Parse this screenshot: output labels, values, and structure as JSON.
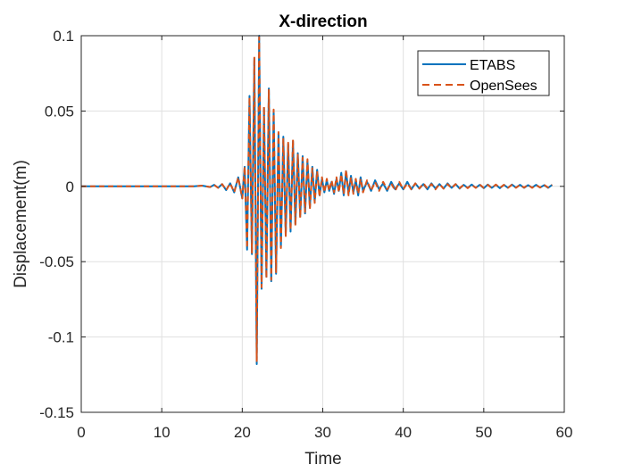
{
  "chart_data": {
    "type": "line",
    "title": "X-direction",
    "xlabel": "Time",
    "ylabel": "Displacement(m)",
    "xlim": [
      0,
      60
    ],
    "ylim": [
      -0.15,
      0.1
    ],
    "xticks": [
      0,
      10,
      20,
      30,
      40,
      50,
      60
    ],
    "yticks": [
      -0.15,
      -0.1,
      -0.05,
      0,
      0.05,
      0.1
    ],
    "xtick_labels": [
      "0",
      "10",
      "20",
      "30",
      "40",
      "50",
      "60"
    ],
    "ytick_labels": [
      "-0.15",
      "-0.1",
      "-0.05",
      "0",
      "0.05",
      "0.1"
    ],
    "grid": true,
    "legend_position": "top-right",
    "colors": {
      "ETABS": "#0072BD",
      "OpenSees": "#D95319"
    },
    "series": [
      {
        "name": "ETABS",
        "style": "solid",
        "x": [
          0,
          2,
          4,
          6,
          8,
          10,
          12,
          14,
          15,
          16,
          16.5,
          17,
          17.5,
          18,
          18.5,
          19,
          19.5,
          20,
          20.3,
          20.6,
          20.9,
          21.2,
          21.5,
          21.8,
          22.1,
          22.4,
          22.7,
          23,
          23.3,
          23.6,
          23.9,
          24.2,
          24.5,
          24.8,
          25.1,
          25.4,
          25.7,
          26,
          26.3,
          26.6,
          26.9,
          27.2,
          27.5,
          27.8,
          28.1,
          28.4,
          28.7,
          29,
          29.3,
          29.6,
          29.9,
          30.2,
          30.5,
          30.8,
          31.1,
          31.4,
          31.7,
          32,
          32.3,
          32.6,
          32.9,
          33.2,
          33.5,
          33.8,
          34.1,
          34.4,
          34.7,
          35,
          35.5,
          36,
          36.5,
          37,
          37.5,
          38,
          38.5,
          39,
          39.5,
          40,
          40.5,
          41,
          41.5,
          42,
          42.5,
          43,
          43.5,
          44,
          44.5,
          45,
          45.5,
          46,
          46.5,
          47,
          47.5,
          48,
          48.5,
          49,
          49.5,
          50,
          50.5,
          51,
          51.5,
          52,
          52.5,
          53,
          53.5,
          54,
          54.5,
          55,
          55.5,
          56,
          56.5,
          57,
          57.5,
          58,
          58.5
        ],
        "values": [
          0,
          0,
          0,
          0,
          0,
          0,
          0,
          0,
          0.0005,
          -0.0005,
          0.001,
          -0.001,
          0.0015,
          -0.0025,
          0.002,
          -0.004,
          0.006,
          -0.008,
          0.013,
          -0.042,
          0.06,
          -0.045,
          0.085,
          -0.118,
          0.1,
          -0.068,
          0.052,
          -0.06,
          0.065,
          -0.063,
          0.05,
          -0.058,
          0.035,
          -0.04,
          0.033,
          -0.032,
          0.028,
          -0.03,
          0.03,
          -0.025,
          0.022,
          -0.02,
          0.02,
          -0.018,
          0.017,
          -0.014,
          0.013,
          -0.01,
          0.011,
          -0.006,
          0.005,
          -0.004,
          0.004,
          -0.003,
          0.003,
          -0.005,
          0.005,
          -0.003,
          0.009,
          -0.006,
          0.01,
          -0.005,
          0.007,
          -0.004,
          0.004,
          -0.006,
          0.006,
          -0.003,
          0.003,
          -0.003,
          0.004,
          -0.002,
          0.002,
          -0.003,
          0.003,
          -0.002,
          0.002,
          -0.002,
          0.003,
          -0.002,
          0.002,
          -0.0015,
          0.0015,
          -0.002,
          0.002,
          -0.0015,
          0.0015,
          -0.0015,
          0.002,
          -0.001,
          0.0015,
          -0.0015,
          0.001,
          -0.001,
          0.0012,
          -0.001,
          0.001,
          -0.0012,
          0.0012,
          -0.001,
          0.001,
          -0.0012,
          0.001,
          -0.001,
          0.0012,
          -0.0008,
          0.001,
          -0.001,
          0.0008,
          -0.0008,
          0.001,
          -0.0008,
          0.0008,
          -0.001,
          0.001
        ]
      },
      {
        "name": "OpenSees",
        "style": "dashed",
        "x": [
          0,
          2,
          4,
          6,
          8,
          10,
          12,
          14,
          15,
          16,
          16.5,
          17,
          17.5,
          18,
          18.5,
          19,
          19.5,
          20,
          20.3,
          20.6,
          20.9,
          21.2,
          21.5,
          21.8,
          22.1,
          22.4,
          22.7,
          23,
          23.3,
          23.6,
          23.9,
          24.2,
          24.5,
          24.8,
          25.1,
          25.4,
          25.7,
          26,
          26.3,
          26.6,
          26.9,
          27.2,
          27.5,
          27.8,
          28.1,
          28.4,
          28.7,
          29,
          29.3,
          29.6,
          29.9,
          30.2,
          30.5,
          30.8,
          31.1,
          31.4,
          31.7,
          32,
          32.3,
          32.6,
          32.9,
          33.2,
          33.5,
          33.8,
          34.1,
          34.4,
          34.7,
          35,
          35.5,
          36,
          36.5,
          37,
          37.5,
          38,
          38.5,
          39,
          39.5,
          40,
          40.5,
          41,
          41.5,
          42,
          42.5,
          43,
          43.5,
          44,
          44.5,
          45,
          45.5,
          46,
          46.5,
          47,
          47.5,
          48,
          48.5,
          49,
          49.5,
          50,
          50.5,
          51,
          51.5,
          52,
          52.5,
          53,
          53.5,
          54,
          54.5,
          55,
          55.5,
          56,
          56.5,
          57,
          57.5,
          58,
          58.5
        ],
        "values": [
          0,
          0,
          0,
          0,
          0,
          0,
          0,
          0,
          0.0005,
          -0.0005,
          0.001,
          -0.001,
          0.0015,
          -0.0025,
          0.002,
          -0.004,
          0.006,
          -0.008,
          0.013,
          -0.041,
          0.059,
          -0.044,
          0.086,
          -0.116,
          0.099,
          -0.067,
          0.053,
          -0.061,
          0.064,
          -0.062,
          0.051,
          -0.057,
          0.036,
          -0.041,
          0.032,
          -0.033,
          0.029,
          -0.029,
          0.031,
          -0.026,
          0.021,
          -0.021,
          0.019,
          -0.017,
          0.018,
          -0.015,
          0.012,
          -0.011,
          0.01,
          -0.007,
          0.006,
          -0.004,
          0.005,
          -0.003,
          0.004,
          -0.004,
          0.006,
          -0.004,
          0.008,
          -0.005,
          0.011,
          -0.006,
          0.006,
          -0.005,
          0.005,
          -0.005,
          0.005,
          -0.004,
          0.004,
          -0.003,
          0.003,
          -0.003,
          0.003,
          -0.002,
          0.002,
          -0.003,
          0.003,
          -0.002,
          0.002,
          -0.002,
          0.002,
          -0.0015,
          0.002,
          -0.0015,
          0.0015,
          -0.002,
          0.0015,
          -0.0015,
          0.0015,
          -0.0012,
          0.0015,
          -0.0012,
          0.001,
          -0.0012,
          0.001,
          -0.001,
          0.0012,
          -0.001,
          0.001,
          -0.0012,
          0.0012,
          -0.001,
          0.001,
          -0.001,
          0.001,
          -0.001,
          0.001,
          -0.0008,
          0.001,
          -0.001,
          0.0008,
          -0.0008,
          0.001,
          -0.0008,
          0.001
        ]
      }
    ]
  }
}
